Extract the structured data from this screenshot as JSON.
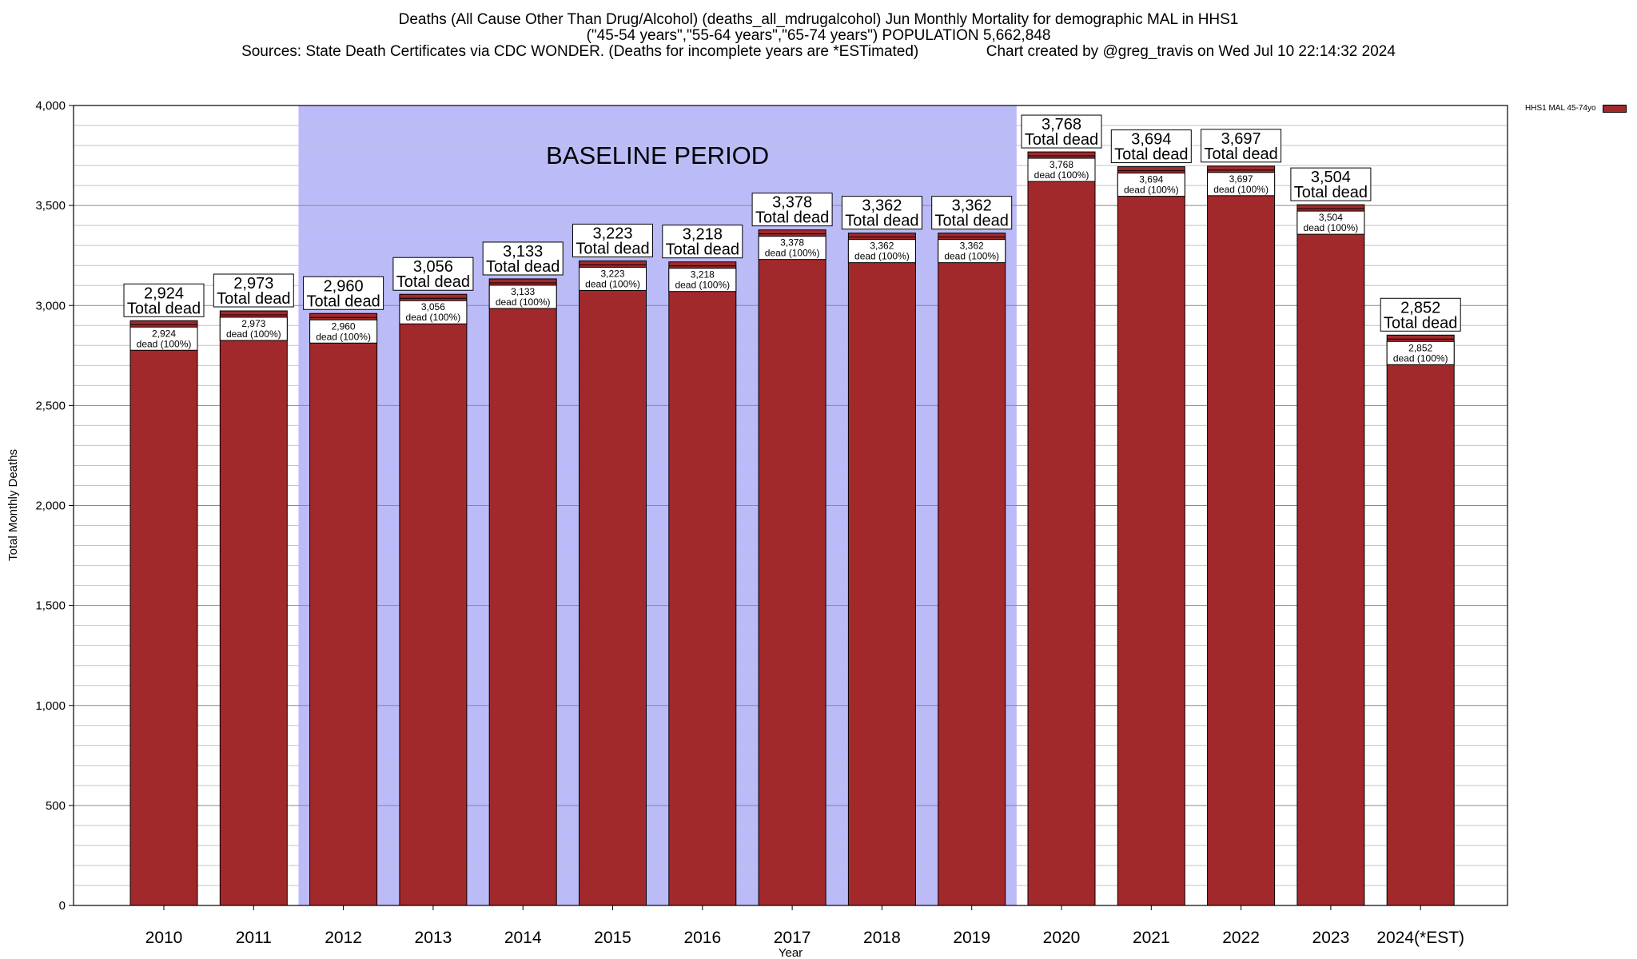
{
  "chart_data": {
    "type": "bar",
    "title_lines": [
      "Deaths (All Cause Other Than Drug/Alcohol) (deaths_all_mdrugalcohol) Jun Monthly Mortality for demographic MAL in HHS1",
      "(\"45-54 years\",\"55-64 years\",\"65-74 years\") POPULATION 5,662,848",
      "Sources: State Death Certificates via CDC WONDER. (Deaths for incomplete years are *ESTimated)                Chart created by @greg_travis on Wed Jul 10 22:14:32 2024"
    ],
    "xlabel": "Year",
    "ylabel": "Total Monthly Deaths",
    "ylim": [
      0,
      4000
    ],
    "y_ticks": [
      0,
      500,
      1000,
      1500,
      2000,
      2500,
      3000,
      3500,
      4000
    ],
    "y_tick_labels": [
      "0",
      "500",
      "1,000",
      "1,500",
      "2,000",
      "2,500",
      "3,000",
      "3,500",
      "4,000"
    ],
    "categories": [
      "2010",
      "2011",
      "2012",
      "2013",
      "2014",
      "2015",
      "2016",
      "2017",
      "2018",
      "2019",
      "2020",
      "2021",
      "2022",
      "2023",
      "2024(*EST)"
    ],
    "series": [
      {
        "name": "HHS1 MAL 45-74yo",
        "color": "#a2292b",
        "values": [
          2924,
          2973,
          2960,
          3056,
          3133,
          3223,
          3218,
          3378,
          3362,
          3362,
          3768,
          3694,
          3697,
          3504,
          2852
        ]
      }
    ],
    "value_labels": [
      "2,924",
      "2,973",
      "2,960",
      "3,056",
      "3,133",
      "3,223",
      "3,218",
      "3,378",
      "3,362",
      "3,362",
      "3,768",
      "3,694",
      "3,697",
      "3,504",
      "2,852"
    ],
    "total_label_suffix": "Total dead",
    "inner_label_suffix": "dead (100%)",
    "baseline_band": {
      "label": "BASELINE PERIOD",
      "from": "2012",
      "to": "2019",
      "color": "#bbbbf8"
    },
    "grid": true,
    "legend_position": "top-right"
  }
}
